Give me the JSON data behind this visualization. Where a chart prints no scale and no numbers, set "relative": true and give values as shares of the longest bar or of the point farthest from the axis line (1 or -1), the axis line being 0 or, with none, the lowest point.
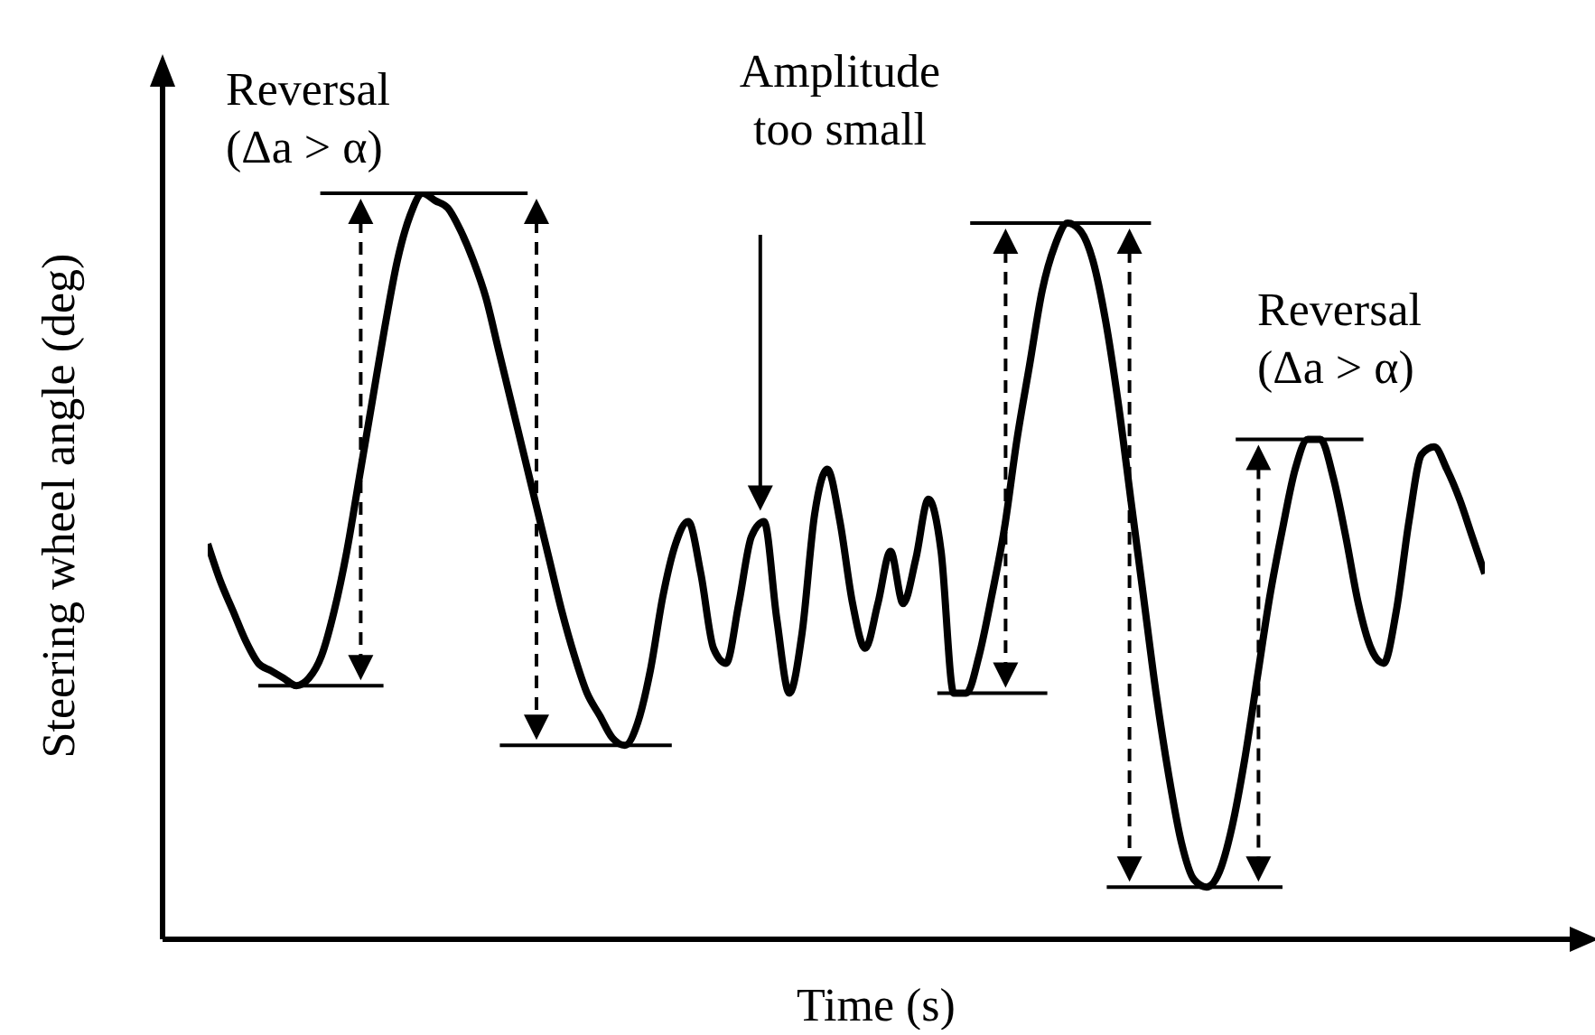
{
  "chart_data": {
    "type": "line",
    "relative": true,
    "xlabel": "Time (s)",
    "ylabel": "Steering wheel angle (deg)",
    "color": "#000000",
    "categories": [
      null,
      null,
      null,
      null,
      null,
      null,
      null,
      null,
      null,
      null,
      null,
      null,
      null,
      null,
      null,
      null,
      null,
      null,
      null,
      null,
      null,
      null,
      null,
      null,
      null,
      null,
      null,
      null,
      null,
      null,
      null,
      null,
      null,
      null,
      null,
      null,
      null,
      null,
      null,
      null,
      null,
      null,
      null,
      null,
      null,
      null,
      null,
      null,
      null,
      null,
      null,
      null,
      null,
      null,
      null,
      null,
      null,
      null,
      null,
      null,
      null,
      null,
      null,
      null,
      null,
      null,
      null,
      null,
      null,
      null,
      null,
      null,
      null,
      null,
      null,
      null,
      null,
      null,
      null,
      null,
      null,
      null,
      null,
      null,
      null,
      null,
      null,
      null,
      null,
      null,
      null,
      null,
      null,
      null,
      null,
      null,
      null,
      null,
      null,
      null,
      null,
      null
    ],
    "values": [
      0.53,
      0.48,
      0.44,
      0.4,
      0.37,
      0.36,
      0.35,
      0.34,
      0.35,
      0.38,
      0.44,
      0.52,
      0.62,
      0.72,
      0.82,
      0.91,
      0.97,
      1,
      0.99,
      0.98,
      0.95,
      0.91,
      0.86,
      0.79,
      0.72,
      0.65,
      0.58,
      0.51,
      0.44,
      0.38,
      0.33,
      0.3,
      0.27,
      0.26,
      0.29,
      0.36,
      0.46,
      0.53,
      0.56,
      0.49,
      0.39,
      0.37,
      0.45,
      0.54,
      0.56,
      0.43,
      0.33,
      0.41,
      0.57,
      0.63,
      0.56,
      0.45,
      0.39,
      0.45,
      0.52,
      0.45,
      0.51,
      0.59,
      0.52,
      0.33,
      0.33,
      0.38,
      0.46,
      0.55,
      0.67,
      0.77,
      0.87,
      0.93,
      0.96,
      0.95,
      0.91,
      0.83,
      0.72,
      0.59,
      0.46,
      0.33,
      0.22,
      0.13,
      0.08,
      0.07,
      0.09,
      0.15,
      0.24,
      0.35,
      0.46,
      0.55,
      0.63,
      0.67,
      0.67,
      0.62,
      0.54,
      0.45,
      0.39,
      0.37,
      0.44,
      0.56,
      0.65,
      0.66,
      0.63,
      0.59,
      0.54,
      0.49
    ],
    "annotations": [
      "Reversal (Δa > α)",
      "Amplitude too small",
      "Reversal (Δa > α)"
    ],
    "grid": false,
    "legend": false
  }
}
